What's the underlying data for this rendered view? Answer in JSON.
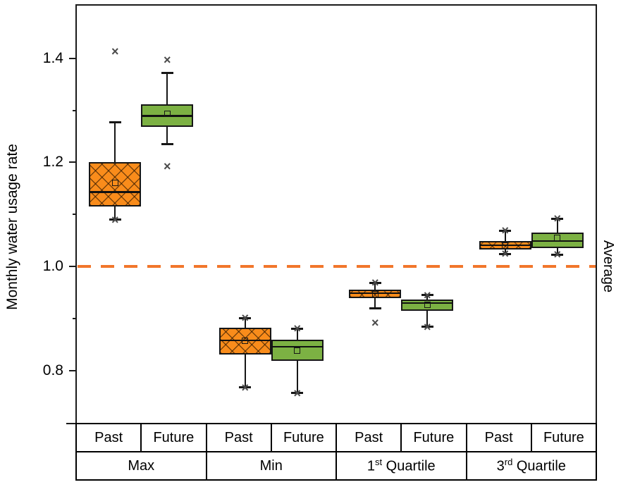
{
  "chart_data": {
    "type": "boxplot",
    "title": "",
    "ylabel": "Monthly water usage rate",
    "xlabel": "",
    "y_ticks": [
      0.8,
      1.0,
      1.2,
      1.4
    ],
    "y_minor_ticks": [
      0.9,
      1.1,
      1.3
    ],
    "y_range": [
      0.697,
      1.501
    ],
    "grid": false,
    "reference_line": {
      "value": 1.0,
      "label": "Average",
      "style": "dashed",
      "color": "#F1762B"
    },
    "groups": [
      "Max",
      "Min",
      "1st Quartile",
      "3rd Quartile"
    ],
    "group_label_runs": [
      [
        {
          "t": "Max"
        }
      ],
      [
        {
          "t": "Min"
        }
      ],
      [
        {
          "t": "1"
        },
        {
          "t": "st",
          "sup": true
        },
        {
          "t": " Quartile"
        }
      ],
      [
        {
          "t": "3"
        },
        {
          "t": "rd",
          "sup": true
        },
        {
          "t": " Quartile"
        }
      ]
    ],
    "sub_categories": [
      "Past",
      "Future"
    ],
    "colors": {
      "past_fill": "#F98C1B",
      "future_fill": "#7CB143",
      "box_border": "#161616"
    },
    "boxes": [
      {
        "group": "Max",
        "period": "Past",
        "q1": 1.115,
        "median": 1.143,
        "q3": 1.2,
        "mean": 1.161,
        "whisker_low": 1.09,
        "whisker_high": 1.277,
        "x_at_low": true,
        "x_at_high": false,
        "outliers": [
          1.413
        ]
      },
      {
        "group": "Max",
        "period": "Future",
        "q1": 1.268,
        "median": 1.289,
        "q3": 1.311,
        "mean": 1.293,
        "whisker_low": 1.235,
        "whisker_high": 1.372,
        "x_at_low": false,
        "x_at_high": false,
        "outliers": [
          1.397,
          1.192
        ]
      },
      {
        "group": "Min",
        "period": "Past",
        "q1": 0.831,
        "median": 0.858,
        "q3": 0.882,
        "mean": 0.857,
        "whisker_low": 0.768,
        "whisker_high": 0.901,
        "x_at_low": true,
        "x_at_high": true,
        "outliers": []
      },
      {
        "group": "Min",
        "period": "Future",
        "q1": 0.819,
        "median": 0.846,
        "q3": 0.859,
        "mean": 0.839,
        "whisker_low": 0.757,
        "whisker_high": 0.881,
        "x_at_low": true,
        "x_at_high": true,
        "outliers": []
      },
      {
        "group": "1st Quartile",
        "period": "Past",
        "q1": 0.939,
        "median": 0.949,
        "q3": 0.955,
        "mean": 0.947,
        "whisker_low": 0.92,
        "whisker_high": 0.969,
        "x_at_low": false,
        "x_at_high": true,
        "outliers": [
          0.892
        ]
      },
      {
        "group": "1st Quartile",
        "period": "Future",
        "q1": 0.915,
        "median": 0.93,
        "q3": 0.936,
        "mean": 0.926,
        "whisker_low": 0.884,
        "whisker_high": 0.945,
        "x_at_low": true,
        "x_at_high": true,
        "outliers": []
      },
      {
        "group": "3rd Quartile",
        "period": "Past",
        "q1": 1.032,
        "median": 1.041,
        "q3": 1.049,
        "mean": 1.04,
        "whisker_low": 1.024,
        "whisker_high": 1.069,
        "x_at_low": true,
        "x_at_high": true,
        "outliers": []
      },
      {
        "group": "3rd Quartile",
        "period": "Future",
        "q1": 1.036,
        "median": 1.049,
        "q3": 1.065,
        "mean": 1.055,
        "whisker_low": 1.023,
        "whisker_high": 1.092,
        "x_at_low": true,
        "x_at_high": true,
        "outliers": []
      }
    ]
  }
}
